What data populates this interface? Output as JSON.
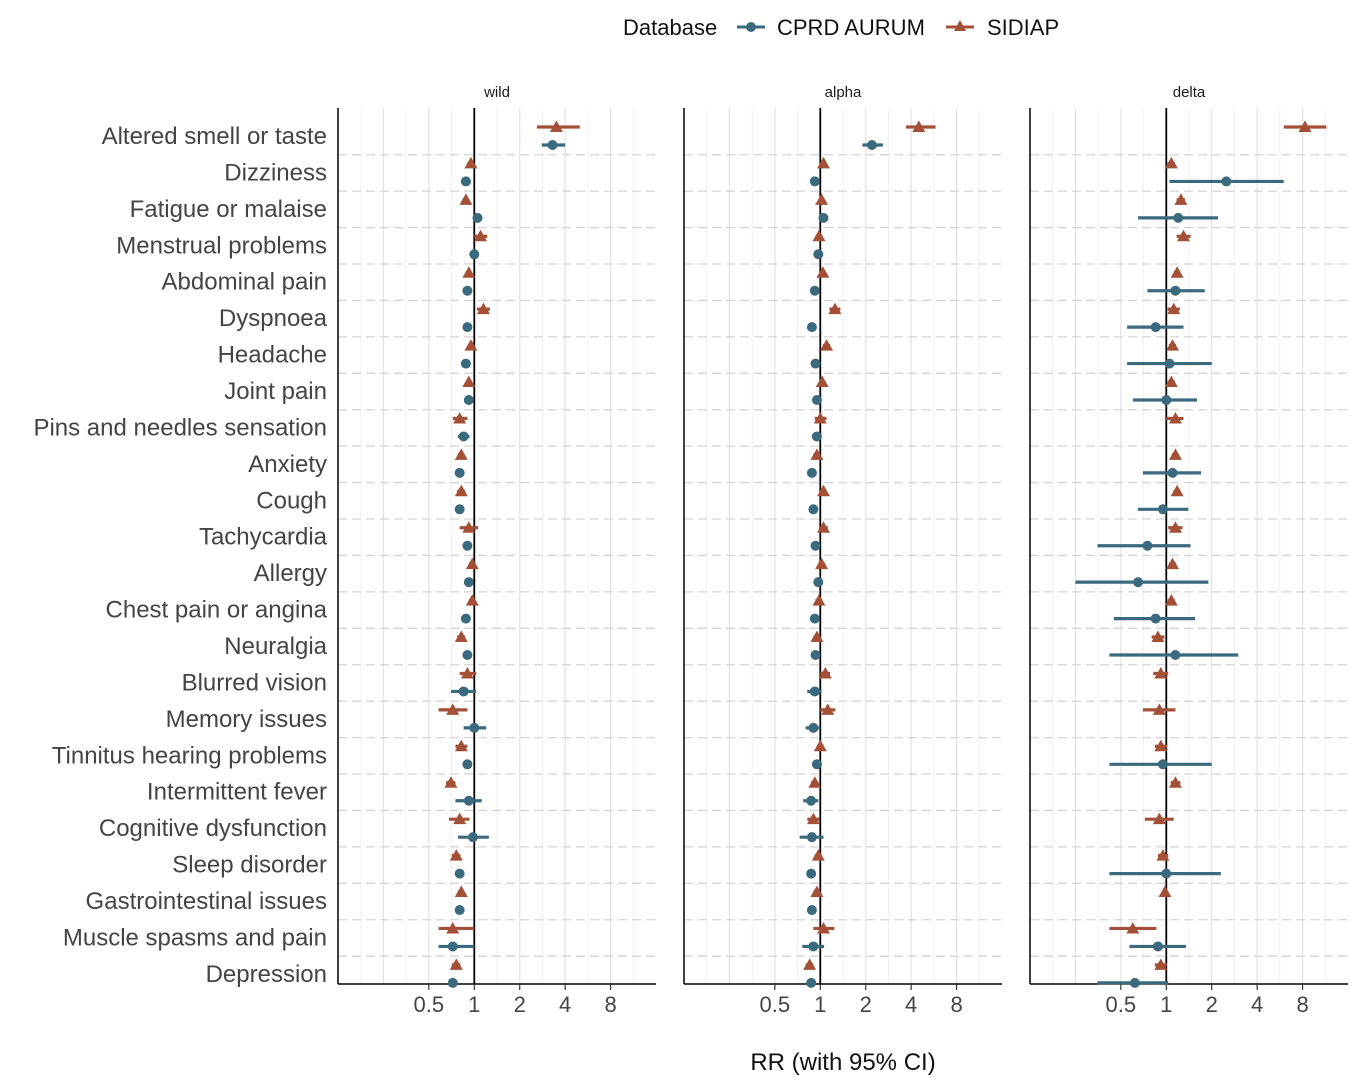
{
  "chart_data": {
    "type": "forest",
    "xlabel": "RR (with 95% CI)",
    "x_scale": "log2",
    "xlim": [
      0.125,
      16
    ],
    "x_ticks": [
      0.5,
      1,
      2,
      4,
      8
    ],
    "x_tick_labels": [
      "0.5",
      "1",
      "2",
      "4",
      "8"
    ],
    "reference_line": 1,
    "legend": {
      "title": "Database",
      "position": "top",
      "entries": [
        {
          "name": "CPRD AURUM",
          "shape": "circle",
          "color": "#3b6a7f"
        },
        {
          "name": "SIDIAP",
          "shape": "triangle",
          "color": "#a35037"
        }
      ]
    },
    "symptoms": [
      "Altered smell or taste",
      "Dizziness",
      "Fatigue or malaise",
      "Menstrual problems",
      "Abdominal pain",
      "Dyspnoea",
      "Headache",
      "Joint pain",
      "Pins and needles sensation",
      "Anxiety",
      "Cough",
      "Tachycardia",
      "Allergy",
      "Chest pain or angina",
      "Neuralgia",
      "Blurred vision",
      "Memory issues",
      "Tinnitus hearing problems",
      "Intermittent fever",
      "Cognitive dysfunction",
      "Sleep disorder",
      "Gastrointestinal issues",
      "Muscle spasms and pain",
      "Depression"
    ],
    "panels": [
      {
        "title": "wild",
        "cprd": [
          [
            3.3,
            2.8,
            4.0
          ],
          [
            0.88,
            0.86,
            0.9
          ],
          [
            1.05,
            1.02,
            1.08
          ],
          [
            1.0,
            0.98,
            1.02
          ],
          [
            0.9,
            0.88,
            0.92
          ],
          [
            0.9,
            0.87,
            0.93
          ],
          [
            0.88,
            0.86,
            0.9
          ],
          [
            0.92,
            0.9,
            0.94
          ],
          [
            0.85,
            0.78,
            0.93
          ],
          [
            0.8,
            0.78,
            0.82
          ],
          [
            0.8,
            0.78,
            0.82
          ],
          [
            0.9,
            0.87,
            0.93
          ],
          [
            0.92,
            0.9,
            0.94
          ],
          [
            0.88,
            0.86,
            0.9
          ],
          [
            0.9,
            0.87,
            0.93
          ],
          [
            0.85,
            0.7,
            1.03
          ],
          [
            1.0,
            0.85,
            1.2
          ],
          [
            0.9,
            0.87,
            0.93
          ],
          [
            0.92,
            0.75,
            1.12
          ],
          [
            0.98,
            0.78,
            1.25
          ],
          [
            0.8,
            0.78,
            0.82
          ],
          [
            0.8,
            0.78,
            0.82
          ],
          [
            0.72,
            0.58,
            1.0
          ],
          [
            0.72,
            0.7,
            0.74
          ]
        ],
        "sidiap": [
          [
            3.5,
            2.6,
            5.0
          ],
          [
            0.95,
            0.9,
            1.0
          ],
          [
            0.88,
            0.84,
            0.92
          ],
          [
            1.1,
            1.0,
            1.22
          ],
          [
            0.92,
            0.88,
            0.96
          ],
          [
            1.15,
            1.04,
            1.27
          ],
          [
            0.95,
            0.91,
            0.99
          ],
          [
            0.92,
            0.88,
            0.96
          ],
          [
            0.8,
            0.72,
            0.9
          ],
          [
            0.82,
            0.78,
            0.86
          ],
          [
            0.82,
            0.77,
            0.87
          ],
          [
            0.92,
            0.8,
            1.06
          ],
          [
            0.97,
            0.92,
            1.02
          ],
          [
            0.97,
            0.92,
            1.02
          ],
          [
            0.82,
            0.77,
            0.87
          ],
          [
            0.9,
            0.8,
            1.03
          ],
          [
            0.72,
            0.58,
            0.9
          ],
          [
            0.82,
            0.75,
            0.9
          ],
          [
            0.7,
            0.65,
            0.75
          ],
          [
            0.8,
            0.68,
            0.93
          ],
          [
            0.76,
            0.71,
            0.81
          ],
          [
            0.82,
            0.78,
            0.86
          ],
          [
            0.72,
            0.58,
            1.0
          ],
          [
            0.76,
            0.71,
            0.81
          ]
        ]
      },
      {
        "title": "alpha",
        "cprd": [
          [
            2.2,
            1.9,
            2.6
          ],
          [
            0.92,
            0.9,
            0.94
          ],
          [
            1.05,
            1.02,
            1.08
          ],
          [
            0.97,
            0.95,
            0.99
          ],
          [
            0.92,
            0.9,
            0.94
          ],
          [
            0.88,
            0.86,
            0.9
          ],
          [
            0.93,
            0.91,
            0.95
          ],
          [
            0.95,
            0.93,
            0.97
          ],
          [
            0.95,
            0.88,
            1.02
          ],
          [
            0.88,
            0.86,
            0.9
          ],
          [
            0.9,
            0.88,
            0.92
          ],
          [
            0.93,
            0.91,
            0.95
          ],
          [
            0.97,
            0.95,
            0.99
          ],
          [
            0.92,
            0.9,
            0.94
          ],
          [
            0.93,
            0.91,
            0.95
          ],
          [
            0.92,
            0.82,
            1.02
          ],
          [
            0.9,
            0.8,
            1.0
          ],
          [
            0.95,
            0.92,
            0.98
          ],
          [
            0.87,
            0.77,
            0.97
          ],
          [
            0.88,
            0.73,
            1.05
          ],
          [
            0.87,
            0.85,
            0.89
          ],
          [
            0.88,
            0.86,
            0.9
          ],
          [
            0.9,
            0.76,
            1.06
          ],
          [
            0.87,
            0.85,
            0.89
          ]
        ],
        "sidiap": [
          [
            4.5,
            3.7,
            5.8
          ],
          [
            1.05,
            1.01,
            1.09
          ],
          [
            1.02,
            0.98,
            1.06
          ],
          [
            0.98,
            0.93,
            1.03
          ],
          [
            1.04,
            1.0,
            1.08
          ],
          [
            1.25,
            1.15,
            1.36
          ],
          [
            1.1,
            1.04,
            1.16
          ],
          [
            1.03,
            0.99,
            1.07
          ],
          [
            1.0,
            0.92,
            1.1
          ],
          [
            0.95,
            0.9,
            1.0
          ],
          [
            1.05,
            1.0,
            1.1
          ],
          [
            1.05,
            0.98,
            1.12
          ],
          [
            1.02,
            0.97,
            1.07
          ],
          [
            0.98,
            0.93,
            1.03
          ],
          [
            0.95,
            0.9,
            1.0
          ],
          [
            1.08,
            1.0,
            1.16
          ],
          [
            1.12,
            1.0,
            1.26
          ],
          [
            1.0,
            0.95,
            1.05
          ],
          [
            0.92,
            0.87,
            0.97
          ],
          [
            0.9,
            0.82,
            0.99
          ],
          [
            0.97,
            0.92,
            1.02
          ],
          [
            0.95,
            0.9,
            1.0
          ],
          [
            1.05,
            0.9,
            1.24
          ],
          [
            0.85,
            0.8,
            0.9
          ]
        ]
      },
      {
        "title": "delta",
        "cprd": [
          [
            null,
            null,
            null
          ],
          [
            2.5,
            1.05,
            6.0
          ],
          [
            1.2,
            0.65,
            2.2
          ],
          [
            null,
            null,
            null
          ],
          [
            1.15,
            0.75,
            1.8
          ],
          [
            0.85,
            0.55,
            1.3
          ],
          [
            1.05,
            0.55,
            2.0
          ],
          [
            1.0,
            0.6,
            1.6
          ],
          [
            null,
            null,
            null
          ],
          [
            1.1,
            0.7,
            1.7
          ],
          [
            0.95,
            0.65,
            1.4
          ],
          [
            0.75,
            0.35,
            1.45
          ],
          [
            0.65,
            0.25,
            1.9
          ],
          [
            0.85,
            0.45,
            1.55
          ],
          [
            1.15,
            0.42,
            3.0
          ],
          [
            null,
            null,
            null
          ],
          [
            null,
            null,
            null
          ],
          [
            0.95,
            0.42,
            2.0
          ],
          [
            null,
            null,
            null
          ],
          [
            null,
            null,
            null
          ],
          [
            1.0,
            0.42,
            2.3
          ],
          [
            null,
            null,
            null
          ],
          [
            0.88,
            0.57,
            1.35
          ],
          [
            0.62,
            0.35,
            1.03
          ]
        ],
        "sidiap": [
          [
            8.3,
            6.0,
            11.5
          ],
          [
            1.08,
            1.02,
            1.14
          ],
          [
            1.25,
            1.17,
            1.33
          ],
          [
            1.3,
            1.17,
            1.45
          ],
          [
            1.18,
            1.12,
            1.24
          ],
          [
            1.12,
            1.02,
            1.23
          ],
          [
            1.1,
            1.04,
            1.16
          ],
          [
            1.08,
            1.02,
            1.14
          ],
          [
            1.15,
            1.0,
            1.3
          ],
          [
            1.15,
            1.09,
            1.21
          ],
          [
            1.18,
            1.12,
            1.24
          ],
          [
            1.15,
            1.03,
            1.28
          ],
          [
            1.1,
            1.04,
            1.16
          ],
          [
            1.08,
            1.02,
            1.14
          ],
          [
            0.88,
            0.8,
            0.97
          ],
          [
            0.92,
            0.82,
            1.03
          ],
          [
            0.9,
            0.7,
            1.15
          ],
          [
            0.92,
            0.84,
            1.01
          ],
          [
            1.15,
            1.07,
            1.24
          ],
          [
            0.9,
            0.72,
            1.12
          ],
          [
            0.95,
            0.88,
            1.03
          ],
          [
            0.98,
            0.94,
            1.02
          ],
          [
            0.6,
            0.42,
            0.86
          ],
          [
            0.92,
            0.84,
            1.01
          ]
        ]
      }
    ]
  }
}
